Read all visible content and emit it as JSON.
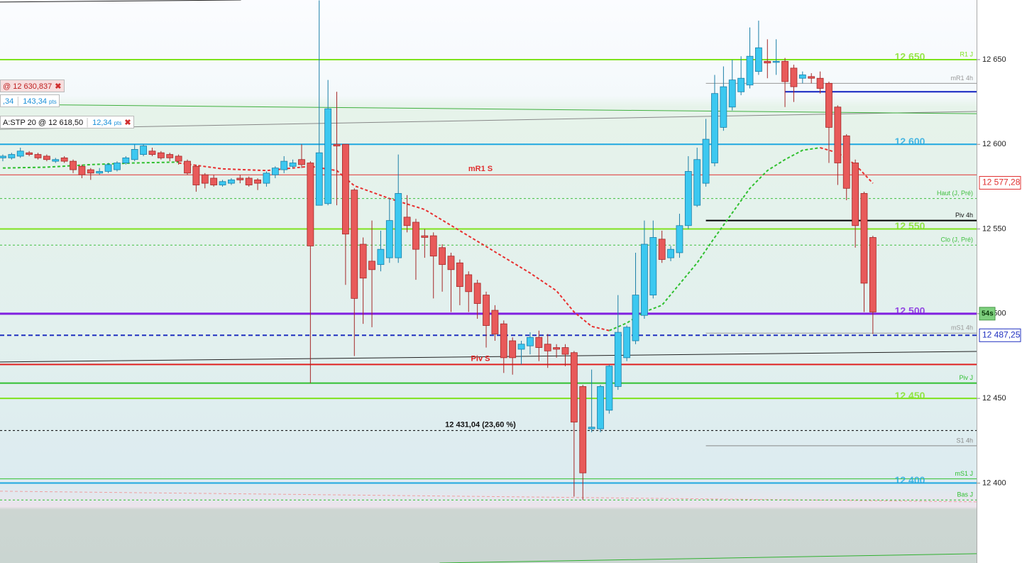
{
  "chart_data": {
    "type": "candlestick",
    "ylim": [
      12352.8,
      12685.2
    ],
    "xlim": [
      -0.32,
      110.8
    ],
    "yticks": [
      {
        "value": 12650,
        "label": "12 650"
      },
      {
        "value": 12600,
        "label": "12 600"
      },
      {
        "value": 12550,
        "label": "12 550"
      },
      {
        "value": 12500,
        "label": "12 500"
      },
      {
        "value": 12450,
        "label": "12 450"
      },
      {
        "value": 12400,
        "label": "12 400"
      }
    ],
    "up_color": "#3cc8f0",
    "down_color": "#e85a5a",
    "open": [
      12592,
      12592,
      12593,
      12595,
      12594,
      12593,
      12590,
      12592,
      12590,
      12587,
      12585,
      12583,
      12584,
      12585,
      12589,
      12591,
      12594,
      12596,
      12595,
      12594,
      12593,
      12590,
      12587,
      12582,
      12580,
      12576,
      12577,
      12580,
      12580,
      12579,
      12577,
      12582,
      12585,
      12587,
      12591,
      12589,
      12564,
      12565,
      12600,
      12600,
      12573,
      12541,
      12531,
      12529,
      12533,
      12533,
      12557,
      12554,
      12546,
      12546,
      12539,
      12534,
      12530,
      12523,
      12518,
      12511,
      12502,
      12494,
      12484,
      12479,
      12481,
      12486,
      12482,
      12480,
      12480,
      12477,
      12457,
      12432,
      12432,
      12443,
      12457,
      12474,
      12484,
      12499,
      12511,
      12544,
      12533,
      12536,
      12552,
      12564,
      12577,
      12589,
      12610,
      12622,
      12631,
      12635,
      12643,
      12649,
      12649,
      12649,
      12645,
      12639,
      12640,
      12639,
      12636,
      12622,
      12605,
      12589,
      12571,
      12545
    ],
    "high": [
      12594,
      12595,
      12598,
      12596,
      12595,
      12594,
      12592,
      12593,
      12591,
      12588,
      12586,
      12586,
      12589,
      12590,
      12593,
      12600,
      12600,
      12598,
      12596,
      12595,
      12594,
      12591,
      12588,
      12583,
      12582,
      12579,
      12580,
      12582,
      12581,
      12580,
      12584,
      12587,
      12593,
      12591,
      12600,
      12590,
      12685,
      12638,
      12631,
      12600,
      12574,
      12545,
      12555,
      12549,
      12568,
      12594,
      12570,
      12556,
      12550,
      12548,
      12541,
      12536,
      12532,
      12525,
      12520,
      12513,
      12505,
      12496,
      12486,
      12484,
      12489,
      12490,
      12488,
      12482,
      12482,
      12478,
      12458,
      12467,
      12458,
      12470,
      12511,
      12493,
      12536,
      12555,
      12555,
      12549,
      12540,
      12559,
      12593,
      12598,
      12615,
      12641,
      12646,
      12650,
      12652,
      12669,
      12673,
      12662,
      12662,
      12651,
      12647,
      12643,
      12642,
      12643,
      12637,
      12623,
      12606,
      12591,
      12572,
      12546
    ],
    "low": [
      12590,
      12591,
      12592,
      12593,
      12591,
      12590,
      12589,
      12589,
      12583,
      12580,
      12579,
      12582,
      12583,
      12584,
      12588,
      12590,
      12593,
      12593,
      12591,
      12590,
      12588,
      12582,
      12572,
      12574,
      12575,
      12575,
      12576,
      12577,
      12575,
      12573,
      12575,
      12580,
      12583,
      12586,
      12586,
      12459,
      12564,
      12564,
      12564,
      12517,
      12475,
      12494,
      12492,
      12525,
      12530,
      12530,
      12548,
      12520,
      12533,
      12509,
      12513,
      12501,
      12505,
      12501,
      12497,
      12480,
      12484,
      12465,
      12464,
      12470,
      12476,
      12472,
      12468,
      12474,
      12469,
      12392,
      12390,
      12430,
      12430,
      12441,
      12455,
      12472,
      12482,
      12497,
      12509,
      12530,
      12531,
      12533,
      12550,
      12563,
      12575,
      12587,
      12608,
      12620,
      12629,
      12633,
      12641,
      12639,
      12641,
      12622,
      12625,
      12636,
      12636,
      12630,
      12589,
      12576,
      12567,
      12539,
      12501,
      12488
    ],
    "close": [
      12593,
      12594,
      12596,
      12594,
      12592,
      12591,
      12591,
      12590,
      12585,
      12582,
      12583,
      12584,
      12588,
      12589,
      12592,
      12597,
      12599,
      12594,
      12592,
      12592,
      12590,
      12583,
      12576,
      12577,
      12576,
      12578,
      12579,
      12579,
      12576,
      12577,
      12583,
      12586,
      12590,
      12589,
      12588,
      12540,
      12595,
      12621,
      12599,
      12547,
      12509,
      12521,
      12526,
      12538,
      12555,
      12571,
      12552,
      12538,
      12545,
      12534,
      12529,
      12526,
      12516,
      12513,
      12506,
      12493,
      12488,
      12474,
      12474,
      12482,
      12486,
      12480,
      12478,
      12479,
      12476,
      12436,
      12406,
      12433,
      12457,
      12469,
      12489,
      12492,
      12511,
      12541,
      12545,
      12532,
      12538,
      12552,
      12584,
      12591,
      12603,
      12630,
      12634,
      12638,
      12639,
      12652,
      12657,
      12648,
      12649,
      12637,
      12634,
      12641,
      12639,
      12633,
      12610,
      12589,
      12574,
      12552,
      12518,
      12501
    ],
    "series": [
      {
        "color": "#30c030",
        "x": [
          0,
          5,
          10,
          15,
          20
        ],
        "values": [
          12586,
          12586.5,
          12588,
          12589,
          12589.5
        ]
      },
      {
        "color": "#e83030",
        "x": [
          20,
          25,
          30,
          35,
          38,
          40,
          44,
          48,
          52,
          56,
          60,
          63,
          65,
          67,
          69
        ],
        "values": [
          12589,
          12585.5,
          12584.5,
          12587,
          12584.5,
          12575.5,
          12568,
          12561.5,
          12549,
          12536.5,
          12524,
          12513.5,
          12501,
          12492.5,
          12490
        ]
      },
      {
        "color": "#30c030",
        "x": [
          69,
          71,
          73,
          75,
          77,
          79,
          81,
          83,
          85,
          87,
          89,
          91,
          93
        ],
        "values": [
          12490,
          12494.5,
          12501,
          12505,
          12517.5,
          12530,
          12545,
          12559.5,
          12574,
          12584.5,
          12591,
          12596.5,
          12598
        ]
      },
      {
        "color": "#e83030",
        "x": [
          93,
          95,
          97,
          99
        ],
        "values": [
          12598,
          12595,
          12588,
          12577
        ]
      }
    ],
    "levels": [
      {
        "value": 12650,
        "color": "#7ee21e",
        "width": 2,
        "label": "R1 J",
        "label_pos": "right",
        "big_label": "12 650"
      },
      {
        "value": 12636,
        "color": "#999999",
        "width": 1,
        "from": 80,
        "label": "mR1 4h",
        "label_pos": "right"
      },
      {
        "value": 12631,
        "color": "#1020c0",
        "width": 2,
        "from": 89
      },
      {
        "value": 12600,
        "color": "#20a8e0",
        "width": 2,
        "big_label": "12 600"
      },
      {
        "value": 12582,
        "color": "#e03030",
        "width": 1,
        "label": "mR1 S",
        "label_pos": "mid"
      },
      {
        "value": 12568,
        "color": "#40c040",
        "width": 1,
        "dash": true,
        "label": "Haut (J, Pré)",
        "label_pos": "right"
      },
      {
        "value": 12555,
        "color": "#000000",
        "width": 2,
        "from": 80,
        "label": "Piv 4h",
        "label_pos": "right"
      },
      {
        "value": 12550,
        "color": "#7ee21e",
        "width": 2,
        "big_label": "12 550"
      },
      {
        "value": 12540.5,
        "color": "#40c040",
        "width": 1,
        "dash": true,
        "label": "Clo (J, Pré)",
        "label_pos": "right"
      },
      {
        "value": 12500,
        "color": "#8020e0",
        "width": 3,
        "big_label": "12 500"
      },
      {
        "value": 12488.5,
        "color": "#999999",
        "width": 1,
        "from": 80,
        "label": "mS1 4h",
        "label_pos": "right"
      },
      {
        "value": 12487.25,
        "color": "#2030c0",
        "width": 2,
        "dash": true,
        "tag": "12 487,25"
      },
      {
        "value": 12470,
        "color": "#e02020",
        "width": 2,
        "label": "Piv S",
        "label_pos": "mid"
      },
      {
        "value": 12459,
        "color": "#30c030",
        "width": 2,
        "label": "Piv J",
        "label_pos": "right"
      },
      {
        "value": 12450,
        "color": "#7ee21e",
        "width": 2,
        "big_label": "12 450"
      },
      {
        "value": 12431.04,
        "color": "#000000",
        "width": 1,
        "dash": true,
        "label": "12 431,04 (23,60 %)",
        "label_pos": "mid"
      },
      {
        "value": 12422,
        "color": "#888888",
        "width": 1,
        "from": 80,
        "label": "S1 4h",
        "label_pos": "right"
      },
      {
        "value": 12402.5,
        "color": "#30c030",
        "width": 1,
        "label": "mS1 J",
        "label_pos": "right"
      },
      {
        "value": 12400,
        "color": "#20a8e0",
        "width": 2,
        "big_label": "12 400"
      },
      {
        "value": 12390,
        "color": "#30c030",
        "width": 1,
        "dash": true,
        "label": "Bas J",
        "label_pos": "right"
      }
    ],
    "trendlines": [
      {
        "color": "#888888",
        "from": [
          -0.32,
          12608.9
        ],
        "to": [
          110.8,
          12619.4
        ]
      },
      {
        "color": "#40b040",
        "from": [
          -0.32,
          12623.6
        ],
        "to": [
          110.8,
          12618.1
        ]
      },
      {
        "color": "#222222",
        "from": [
          -0.32,
          12471.5
        ],
        "to": [
          110.8,
          12477.7
        ]
      },
      {
        "color": "#222222",
        "from": [
          -0.32,
          12684
        ],
        "to": [
          27.1,
          12685.2
        ]
      },
      {
        "color": "#30b030",
        "from": [
          49.7,
          12352.8
        ],
        "to": [
          110.8,
          12358.3
        ]
      },
      {
        "color": "#f0a0a0",
        "from": [
          -0.32,
          12395.2
        ],
        "to": [
          110.8,
          12388.9
        ]
      }
    ],
    "price_tags": [
      {
        "value": 12577.28,
        "label": "12 577,28",
        "color": "#e03030"
      }
    ],
    "timer": {
      "label": "54s",
      "value": 12500
    },
    "orders": [
      {
        "text": "@ 12 630,837"
      },
      {
        "text": ",34",
        "pts_value": "143,34",
        "unit": "pts"
      },
      {
        "text": "A:STP  20 @ 12 618,50",
        "pts_value": "12,34",
        "unit": "pts"
      }
    ]
  }
}
